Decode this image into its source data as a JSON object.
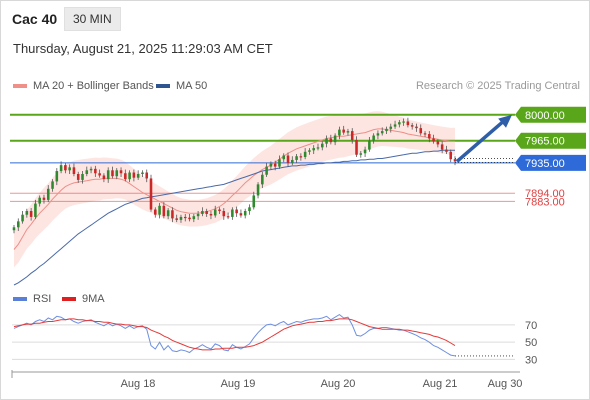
{
  "header": {
    "instrument": "Cac 40",
    "timeframe": "30 MIN",
    "datetime": "Thursday, August 21, 2025 11:29:03 AM CET"
  },
  "legend": {
    "ma20": "MA 20 + Bollinger Bands",
    "ma50": "MA 50",
    "credit": "Research © 2025 Trading Central"
  },
  "rsi_legend": {
    "rsi": "RSI",
    "ma9": "9MA"
  },
  "colors": {
    "resistance": "#5aa61a",
    "pivot": "#2e6bd8",
    "support": "#e04040",
    "bollinger_fill": "#fde0dd",
    "ma20": "#ef8f88",
    "ma50": "#4a6aa8",
    "candle_up": "#2f8a2f",
    "candle_down": "#cc2727",
    "rsi": "#6f8fe0",
    "rsi_ma": "#e33b3b"
  },
  "chart_data": [
    {
      "type": "candlestick",
      "y_range": [
        7770,
        8020
      ],
      "x_labels": [
        "Aug 18",
        "Aug 19",
        "Aug 20",
        "Aug 21",
        "Aug 30"
      ],
      "levels": [
        {
          "value": 8000.0,
          "label": "8000.00",
          "kind": "resistance"
        },
        {
          "value": 7965.0,
          "label": "7965.00",
          "kind": "resistance"
        },
        {
          "value": 7935.0,
          "label": "7935.00",
          "kind": "pivot"
        },
        {
          "value": 7894.0,
          "label": "7894.00",
          "kind": "support"
        },
        {
          "value": 7883.0,
          "label": "7883.00",
          "kind": "support"
        }
      ],
      "forecast_arrow": {
        "from": 7937,
        "to": 8000
      },
      "closes": [
        7848,
        7856,
        7865,
        7870,
        7862,
        7880,
        7888,
        7885,
        7900,
        7910,
        7924,
        7932,
        7925,
        7929,
        7920,
        7912,
        7920,
        7925,
        7927,
        7921,
        7918,
        7913,
        7925,
        7917,
        7925,
        7921,
        7913,
        7922,
        7915,
        7920,
        7922,
        7914,
        7872,
        7865,
        7877,
        7863,
        7871,
        7860,
        7858,
        7862,
        7861,
        7859,
        7863,
        7866,
        7870,
        7866,
        7864,
        7872,
        7870,
        7863,
        7862,
        7872,
        7867,
        7864,
        7870,
        7875,
        7891,
        7906,
        7919,
        7930,
        7934,
        7930,
        7940,
        7945,
        7935,
        7939,
        7944,
        7943,
        7950,
        7952,
        7955,
        7956,
        7961,
        7968,
        7963,
        7972,
        7980,
        7976,
        7978,
        7966,
        7946,
        7948,
        7953,
        7965,
        7972,
        7975,
        7978,
        7981,
        7984,
        7987,
        7990,
        7991,
        7986,
        7984,
        7982,
        7975,
        7974,
        7968,
        7964,
        7960,
        7953,
        7950,
        7940,
        7937
      ],
      "ma20": [
        7818,
        7825,
        7835,
        7845,
        7852,
        7860,
        7867,
        7873,
        7879,
        7886,
        7892,
        7898,
        7903,
        7906,
        7908,
        7909,
        7910,
        7911,
        7912,
        7913,
        7913,
        7914,
        7914,
        7914,
        7914,
        7913,
        7911,
        7907,
        7903,
        7899,
        7895,
        7892,
        7889,
        7886,
        7883,
        7880,
        7877,
        7874,
        7871,
        7869,
        7868,
        7867,
        7867,
        7867,
        7868,
        7869,
        7871,
        7873,
        7876,
        7880,
        7885,
        7891,
        7896,
        7902,
        7908,
        7913,
        7918,
        7922,
        7926,
        7929,
        7932,
        7936,
        7940,
        7944,
        7948,
        7951,
        7954,
        7956,
        7958,
        7960,
        7962,
        7964,
        7966,
        7968,
        7969,
        7970,
        7971,
        7971,
        7972,
        7973,
        7974,
        7975,
        7976,
        7978,
        7980,
        7981,
        7981,
        7980,
        7979,
        7978,
        7977,
        7976,
        7974,
        7973,
        7972,
        7971,
        7970,
        7969,
        7968,
        7967,
        7966,
        7965,
        7964,
        7964
      ],
      "ma50": [
        7770,
        7773,
        7777,
        7781,
        7786,
        7790,
        7795,
        7799,
        7804,
        7809,
        7814,
        7819,
        7824,
        7829,
        7834,
        7839,
        7843,
        7847,
        7851,
        7855,
        7859,
        7863,
        7867,
        7870,
        7873,
        7876,
        7879,
        7881,
        7883,
        7885,
        7887,
        7888,
        7889,
        7890,
        7891,
        7892,
        7893,
        7894,
        7895,
        7896,
        7897,
        7898,
        7899,
        7900,
        7901,
        7902,
        7903,
        7904,
        7905,
        7906,
        7908,
        7910,
        7912,
        7914,
        7916,
        7918,
        7920,
        7922,
        7924,
        7925,
        7926,
        7927,
        7928,
        7929,
        7930,
        7931,
        7931,
        7932,
        7932,
        7933,
        7933,
        7934,
        7934,
        7935,
        7935,
        7936,
        7936,
        7937,
        7937,
        7938,
        7938,
        7939,
        7939,
        7940,
        7940,
        7941,
        7941,
        7942,
        7943,
        7944,
        7945,
        7946,
        7947,
        7948,
        7948,
        7949,
        7950,
        7950,
        7951,
        7951,
        7952,
        7952,
        7952,
        7952
      ]
    },
    {
      "type": "line",
      "name": "RSI",
      "y_ticks": [
        70,
        50,
        30
      ],
      "y_range": [
        20,
        85
      ],
      "rsi": [
        66,
        68,
        70,
        72,
        70,
        74,
        76,
        74,
        78,
        76,
        80,
        79,
        76,
        77,
        74,
        72,
        74,
        75,
        76,
        73,
        71,
        69,
        72,
        69,
        71,
        69,
        66,
        69,
        66,
        68,
        69,
        65,
        46,
        42,
        50,
        41,
        46,
        40,
        39,
        41,
        40,
        38,
        42,
        44,
        47,
        44,
        42,
        48,
        46,
        41,
        40,
        47,
        44,
        42,
        45,
        48,
        55,
        61,
        66,
        70,
        71,
        69,
        72,
        74,
        70,
        72,
        74,
        73,
        75,
        76,
        77,
        77,
        78,
        80,
        76,
        79,
        82,
        78,
        79,
        70,
        58,
        57,
        60,
        64,
        66,
        66,
        67,
        67,
        66,
        65,
        64,
        64,
        62,
        60,
        58,
        55,
        53,
        50,
        46,
        44,
        41,
        38,
        35,
        34
      ],
      "ma9": [
        68,
        69,
        70,
        71,
        71,
        72,
        72,
        73,
        74,
        74,
        75,
        76,
        76,
        77,
        77,
        76,
        76,
        75,
        75,
        74,
        74,
        73,
        73,
        72,
        71,
        71,
        70,
        70,
        69,
        68,
        68,
        67,
        64,
        62,
        60,
        57,
        55,
        52,
        50,
        48,
        46,
        44,
        43,
        42,
        41,
        41,
        41,
        42,
        42,
        43,
        43,
        43,
        44,
        44,
        44,
        45,
        46,
        48,
        50,
        53,
        56,
        59,
        62,
        65,
        67,
        69,
        70,
        71,
        72,
        73,
        73,
        74,
        74,
        75,
        75,
        76,
        77,
        77,
        77,
        76,
        74,
        72,
        70,
        68,
        67,
        66,
        65,
        65,
        65,
        65,
        65,
        64,
        64,
        63,
        62,
        61,
        60,
        59,
        57,
        56,
        54,
        52,
        49,
        46
      ]
    }
  ]
}
